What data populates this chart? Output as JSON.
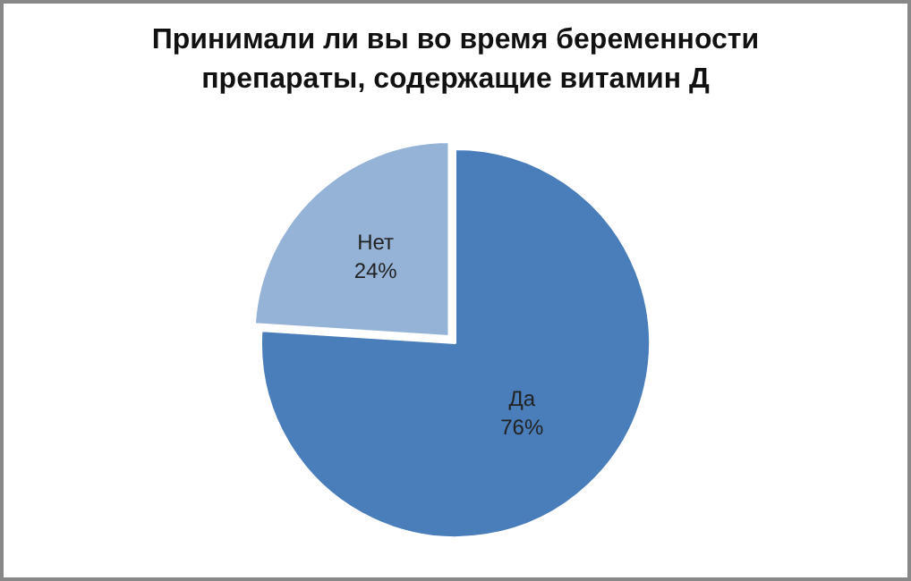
{
  "chart_data": {
    "type": "pie",
    "title": "Принимали ли вы во время беременности препараты, содержащие витамин Д",
    "categories": [
      "Да",
      "Нет"
    ],
    "values": [
      76,
      24
    ],
    "colors": [
      "#4a7ebb",
      "#95b3d7"
    ],
    "value_labels": [
      "76%",
      "24%"
    ],
    "legend": false
  }
}
